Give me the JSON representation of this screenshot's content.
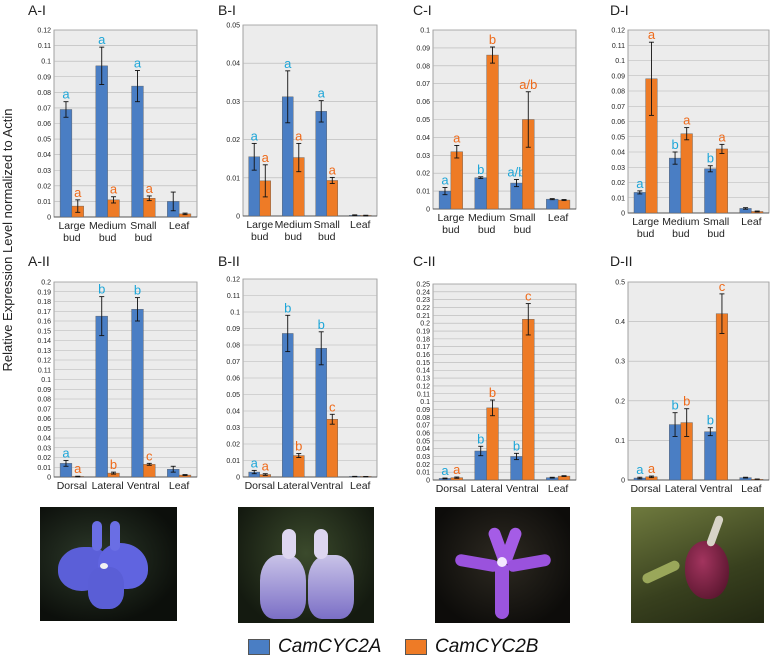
{
  "figure": {
    "ylabel": "Relative Expression Level normalized to Actin",
    "legend": [
      {
        "name": "CamCYC2A",
        "color": "#4a7ec4"
      },
      {
        "name": "CamCYC2B",
        "color": "#ee7b26"
      }
    ],
    "photos": [
      {
        "name": "lobelia-blue-flower-photo",
        "desc": "blue"
      },
      {
        "name": "lobelia-pale-violet-flower-photo",
        "desc": "pale"
      },
      {
        "name": "lobelia-purple-star-flower-photo",
        "desc": "purple"
      },
      {
        "name": "lobelia-dark-bud-photo",
        "desc": "dark"
      }
    ]
  },
  "chart_data": [
    {
      "panel": "A-I",
      "type": "bar",
      "ylim": [
        0,
        0.12
      ],
      "ticks": [
        0,
        0.01,
        0.02,
        0.03,
        0.04,
        0.05,
        0.06,
        0.07,
        0.08,
        0.09,
        0.1,
        0.11,
        0.12
      ],
      "categories": [
        [
          "Large",
          "bud"
        ],
        [
          "Medium",
          "bud"
        ],
        [
          "Small",
          "bud"
        ],
        [
          "Leaf"
        ]
      ],
      "series": [
        {
          "name": "CamCYC2A",
          "values": [
            0.069,
            0.097,
            0.084,
            0.01
          ],
          "err": [
            0.005,
            0.012,
            0.01,
            0.006
          ],
          "sig": [
            "a",
            "a",
            "a",
            ""
          ]
        },
        {
          "name": "CamCYC2B",
          "values": [
            0.007,
            0.011,
            0.012,
            0.002
          ],
          "err": [
            0.004,
            0.002,
            0.0015,
            0.0005
          ],
          "sig": [
            "a",
            "a",
            "a",
            ""
          ]
        }
      ]
    },
    {
      "panel": "B-I",
      "type": "bar",
      "ylim": [
        0,
        0.05
      ],
      "ticks": [
        0,
        0.01,
        0.02,
        0.03,
        0.04,
        0.05
      ],
      "categories": [
        [
          "Large",
          "bud"
        ],
        [
          "Medium",
          "bud"
        ],
        [
          "Small",
          "bud"
        ],
        [
          "Leaf"
        ]
      ],
      "series": [
        {
          "name": "CamCYC2A",
          "values": [
            0.0155,
            0.0312,
            0.0274,
            0.0002
          ],
          "err": [
            0.0035,
            0.0068,
            0.0028,
            0.0001
          ],
          "sig": [
            "a",
            "a",
            "a",
            ""
          ]
        },
        {
          "name": "CamCYC2B",
          "values": [
            0.0092,
            0.0153,
            0.0093,
            0.0001
          ],
          "err": [
            0.0042,
            0.0037,
            0.0008,
            0.0001
          ],
          "sig": [
            "a",
            "a",
            "a",
            ""
          ]
        }
      ]
    },
    {
      "panel": "C-I",
      "type": "bar",
      "ylim": [
        0,
        0.1
      ],
      "ticks": [
        0,
        0.01,
        0.02,
        0.03,
        0.04,
        0.05,
        0.06,
        0.07,
        0.08,
        0.09,
        0.1
      ],
      "categories": [
        [
          "Large",
          "bud"
        ],
        [
          "Medium",
          "bud"
        ],
        [
          "Small",
          "bud"
        ],
        [
          "Leaf"
        ]
      ],
      "series": [
        {
          "name": "CamCYC2A",
          "values": [
            0.01,
            0.0175,
            0.0145,
            0.0055
          ],
          "err": [
            0.002,
            0.0005,
            0.002,
            0.0003
          ],
          "sig": [
            "a",
            "b",
            "a/b",
            ""
          ]
        },
        {
          "name": "CamCYC2B",
          "values": [
            0.032,
            0.086,
            0.05,
            0.005
          ],
          "err": [
            0.0035,
            0.0045,
            0.0155,
            0.0003
          ],
          "sig": [
            "a",
            "b",
            "a/b",
            ""
          ]
        }
      ]
    },
    {
      "panel": "D-I",
      "type": "bar",
      "ylim": [
        0,
        0.12
      ],
      "ticks": [
        0,
        0.01,
        0.02,
        0.03,
        0.04,
        0.05,
        0.06,
        0.07,
        0.08,
        0.09,
        0.1,
        0.11,
        0.12
      ],
      "categories": [
        [
          "Large",
          "bud"
        ],
        [
          "Medium",
          "bud"
        ],
        [
          "Small",
          "bud"
        ],
        [
          "Leaf"
        ]
      ],
      "series": [
        {
          "name": "CamCYC2A",
          "values": [
            0.0135,
            0.036,
            0.029,
            0.003
          ],
          "err": [
            0.001,
            0.004,
            0.002,
            0.0005
          ],
          "sig": [
            "a",
            "b",
            "b",
            ""
          ]
        },
        {
          "name": "CamCYC2B",
          "values": [
            0.088,
            0.052,
            0.042,
            0.001
          ],
          "err": [
            0.024,
            0.004,
            0.003,
            0.0003
          ],
          "sig": [
            "a",
            "a",
            "a",
            ""
          ]
        }
      ]
    },
    {
      "panel": "A-II",
      "type": "bar",
      "ylim": [
        0,
        0.2
      ],
      "ticks": [
        0,
        0.01,
        0.02,
        0.03,
        0.04,
        0.05,
        0.06,
        0.07,
        0.08,
        0.09,
        0.1,
        0.11,
        0.12,
        0.13,
        0.14,
        0.15,
        0.16,
        0.17,
        0.18,
        0.19,
        0.2
      ],
      "categories": [
        [
          "Dorsal"
        ],
        [
          "Lateral"
        ],
        [
          "Ventral"
        ],
        [
          "Leaf"
        ]
      ],
      "series": [
        {
          "name": "CamCYC2A",
          "values": [
            0.014,
            0.165,
            0.172,
            0.008
          ],
          "err": [
            0.003,
            0.02,
            0.012,
            0.003
          ],
          "sig": [
            "a",
            "b",
            "b",
            ""
          ]
        },
        {
          "name": "CamCYC2B",
          "values": [
            0.0005,
            0.004,
            0.013,
            0.002
          ],
          "err": [
            0.0003,
            0.001,
            0.001,
            0.0005
          ],
          "sig": [
            "a",
            "b",
            "c",
            ""
          ]
        }
      ]
    },
    {
      "panel": "B-II",
      "type": "bar",
      "ylim": [
        0,
        0.12
      ],
      "ticks": [
        0,
        0.01,
        0.02,
        0.03,
        0.04,
        0.05,
        0.06,
        0.07,
        0.08,
        0.09,
        0.1,
        0.11,
        0.12
      ],
      "categories": [
        [
          "Dorsal"
        ],
        [
          "Lateral"
        ],
        [
          "Ventral"
        ],
        [
          "Leaf"
        ]
      ],
      "series": [
        {
          "name": "CamCYC2A",
          "values": [
            0.003,
            0.087,
            0.078,
            0.0003
          ],
          "err": [
            0.001,
            0.011,
            0.01,
            0.0001
          ],
          "sig": [
            "a",
            "b",
            "b",
            ""
          ]
        },
        {
          "name": "CamCYC2B",
          "values": [
            0.0015,
            0.013,
            0.035,
            0.0002
          ],
          "err": [
            0.0005,
            0.0012,
            0.003,
            0.0001
          ],
          "sig": [
            "a",
            "b",
            "c",
            ""
          ]
        }
      ]
    },
    {
      "panel": "C-II",
      "type": "bar",
      "ylim": [
        0,
        0.25
      ],
      "ticks": [
        0,
        0.01,
        0.02,
        0.03,
        0.04,
        0.05,
        0.06,
        0.07,
        0.08,
        0.09,
        0.1,
        0.11,
        0.12,
        0.13,
        0.14,
        0.15,
        0.16,
        0.17,
        0.18,
        0.19,
        0.2,
        0.21,
        0.22,
        0.23,
        0.24,
        0.25
      ],
      "categories": [
        [
          "Dorsal"
        ],
        [
          "Lateral"
        ],
        [
          "Ventral"
        ],
        [
          "Leaf"
        ]
      ],
      "series": [
        {
          "name": "CamCYC2A",
          "values": [
            0.002,
            0.037,
            0.03,
            0.003
          ],
          "err": [
            0.0005,
            0.006,
            0.004,
            0.0005
          ],
          "sig": [
            "a",
            "b",
            "b",
            ""
          ]
        },
        {
          "name": "CamCYC2B",
          "values": [
            0.003,
            0.092,
            0.205,
            0.005
          ],
          "err": [
            0.0008,
            0.01,
            0.02,
            0.0005
          ],
          "sig": [
            "a",
            "b",
            "c",
            ""
          ]
        }
      ]
    },
    {
      "panel": "D-II",
      "type": "bar",
      "ylim": [
        0,
        0.5
      ],
      "ticks": [
        0,
        0.1,
        0.2,
        0.3,
        0.4,
        0.5
      ],
      "categories": [
        [
          "Dorsal"
        ],
        [
          "Lateral"
        ],
        [
          "Ventral"
        ],
        [
          "Leaf"
        ]
      ],
      "series": [
        {
          "name": "CamCYC2A",
          "values": [
            0.005,
            0.14,
            0.122,
            0.006
          ],
          "err": [
            0.002,
            0.03,
            0.01,
            0.001
          ],
          "sig": [
            "a",
            "b",
            "b",
            ""
          ]
        },
        {
          "name": "CamCYC2B",
          "values": [
            0.008,
            0.145,
            0.42,
            0.002
          ],
          "err": [
            0.002,
            0.035,
            0.05,
            0.0005
          ],
          "sig": [
            "a",
            "b",
            "c",
            ""
          ]
        }
      ]
    }
  ]
}
